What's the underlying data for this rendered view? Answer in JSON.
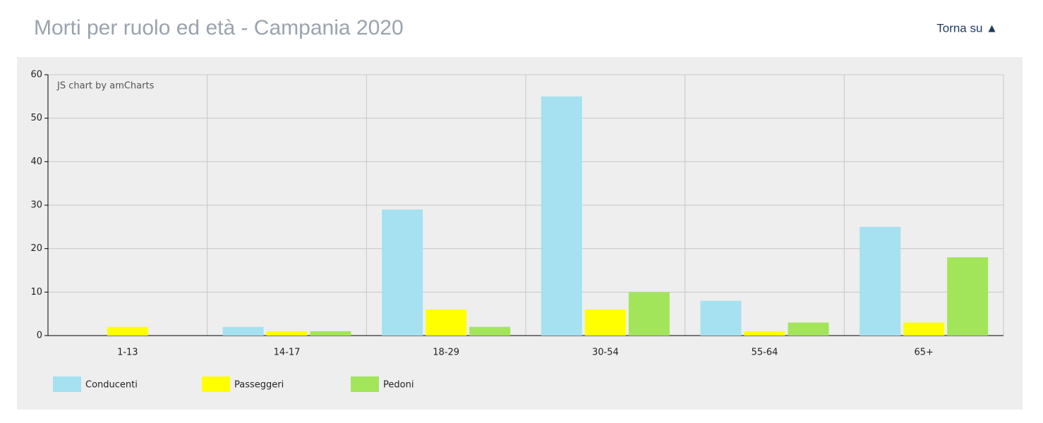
{
  "page_header": {
    "title": "Morti per ruolo ed età - Campania 2020",
    "link": "Torna su ▲"
  },
  "chart_data": {
    "type": "bar",
    "credit": "JS chart by amCharts",
    "categories": [
      "1-13",
      "14-17",
      "18-29",
      "30-54",
      "55-64",
      "65+"
    ],
    "series": [
      {
        "name": "Conducenti",
        "color": "#a5e1f0",
        "values": [
          0,
          2,
          29,
          55,
          8,
          25
        ]
      },
      {
        "name": "Passeggeri",
        "color": "#ffff00",
        "values": [
          2,
          1,
          6,
          6,
          1,
          3
        ]
      },
      {
        "name": "Pedoni",
        "color": "#a2e55a",
        "values": [
          0,
          1,
          2,
          10,
          3,
          18
        ]
      }
    ],
    "ylim": [
      0,
      60
    ],
    "yticks": [
      0,
      10,
      20,
      30,
      40,
      50,
      60
    ],
    "grid": true,
    "legend": "bottom-left"
  }
}
